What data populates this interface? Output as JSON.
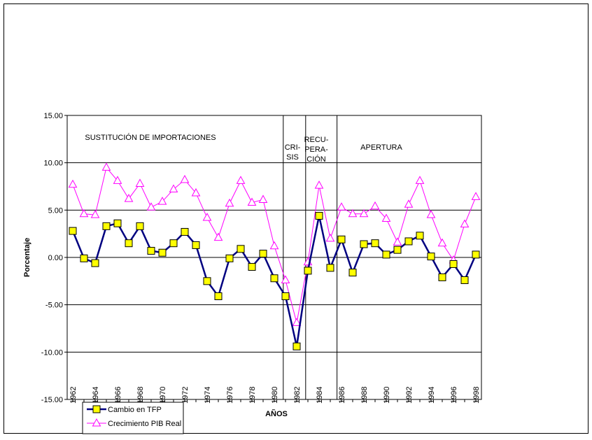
{
  "chart_data": {
    "type": "line",
    "x_label": "AÑOS",
    "y_label": "Porcentaje",
    "x": [
      1962,
      1963,
      1964,
      1965,
      1966,
      1967,
      1968,
      1969,
      1970,
      1971,
      1972,
      1973,
      1974,
      1975,
      1976,
      1977,
      1978,
      1979,
      1980,
      1981,
      1982,
      1983,
      1984,
      1985,
      1986,
      1987,
      1988,
      1989,
      1990,
      1991,
      1992,
      1993,
      1994,
      1995,
      1996,
      1997,
      1998
    ],
    "xlim": [
      1961.5,
      1998.5
    ],
    "xticks": [
      1962,
      1964,
      1966,
      1968,
      1970,
      1972,
      1974,
      1976,
      1978,
      1980,
      1982,
      1984,
      1986,
      1988,
      1990,
      1992,
      1994,
      1996,
      1998
    ],
    "ylim": [
      -15,
      15
    ],
    "yticks": [
      {
        "value": -15,
        "label": "-15.00"
      },
      {
        "value": -10,
        "label": "-10.00"
      },
      {
        "value": -5,
        "label": "-5.00"
      },
      {
        "value": 0,
        "label": "0.00"
      },
      {
        "value": 5,
        "label": "5.00"
      },
      {
        "value": 10,
        "label": "10.00"
      },
      {
        "value": 15,
        "label": "15.00"
      }
    ],
    "grid": true,
    "legend": "bottom-left",
    "dividers": [
      1980.8,
      1982.8,
      1985.6
    ],
    "periods": [
      [
        "SUSTITUCIÓN DE IMPORTACIONES"
      ],
      [
        "CRI-",
        "SIS"
      ],
      [
        "RECU-",
        "PERA-",
        "CIÓN"
      ],
      [
        "APERTURA"
      ]
    ],
    "series": [
      {
        "name": "Cambio en  TFP",
        "color": "#000080",
        "marker": "square",
        "marker_color": "#ffff00",
        "values": [
          2.8,
          -0.1,
          -0.6,
          3.3,
          3.6,
          1.5,
          3.3,
          0.7,
          0.5,
          1.5,
          2.7,
          1.3,
          -2.5,
          -4.1,
          -0.1,
          0.9,
          -1.0,
          0.4,
          -2.2,
          -4.1,
          -9.4,
          -1.4,
          4.4,
          -1.1,
          1.9,
          -1.6,
          1.4,
          1.5,
          0.3,
          0.8,
          1.7,
          2.3,
          0.1,
          -2.1,
          -0.7,
          -2.4,
          0.3
        ]
      },
      {
        "name": "Crecimiento PIB Real",
        "color": "#ff00ff",
        "marker": "triangle",
        "marker_color": "#ffffff",
        "values": [
          7.7,
          4.6,
          4.5,
          9.5,
          8.1,
          6.2,
          7.8,
          5.3,
          5.9,
          7.2,
          8.2,
          6.8,
          4.2,
          2.1,
          5.7,
          8.1,
          5.8,
          6.1,
          1.2,
          -2.4,
          -6.9,
          -0.5,
          7.6,
          2.0,
          5.3,
          4.6,
          4.6,
          5.4,
          4.1,
          1.6,
          5.6,
          8.1,
          4.5,
          1.5,
          -0.3,
          3.5,
          6.4
        ]
      }
    ]
  }
}
